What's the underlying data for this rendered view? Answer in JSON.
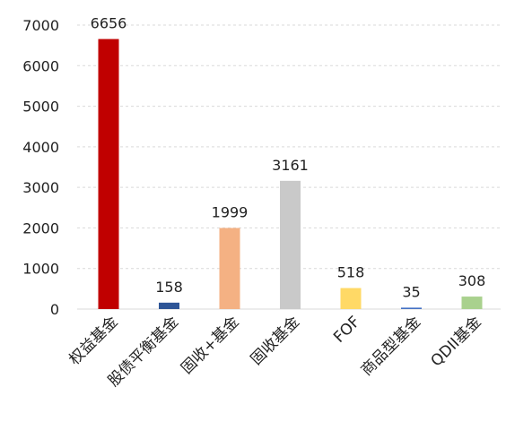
{
  "chart_data": {
    "type": "bar",
    "title": "",
    "xlabel": "",
    "ylabel": "",
    "categories": [
      "权益基金",
      "股债平衡基金",
      "固收+基金",
      "固收基金",
      "FOF",
      "商品型基金",
      "QDII基金"
    ],
    "values": [
      6656,
      158,
      1999,
      3161,
      518,
      35,
      308
    ],
    "data_labels": [
      "6656",
      "158",
      "1999",
      "3161",
      "518",
      "35",
      "308"
    ],
    "colors": [
      "#c00000",
      "#2e5597",
      "#f4b183",
      "#c9c9c9",
      "#ffd966",
      "#4472c4",
      "#a9d18e"
    ],
    "ylim": [
      0,
      7000
    ],
    "yticks": [
      0,
      1000,
      2000,
      3000,
      4000,
      5000,
      6000,
      7000
    ],
    "grid": true,
    "legend": "none"
  }
}
